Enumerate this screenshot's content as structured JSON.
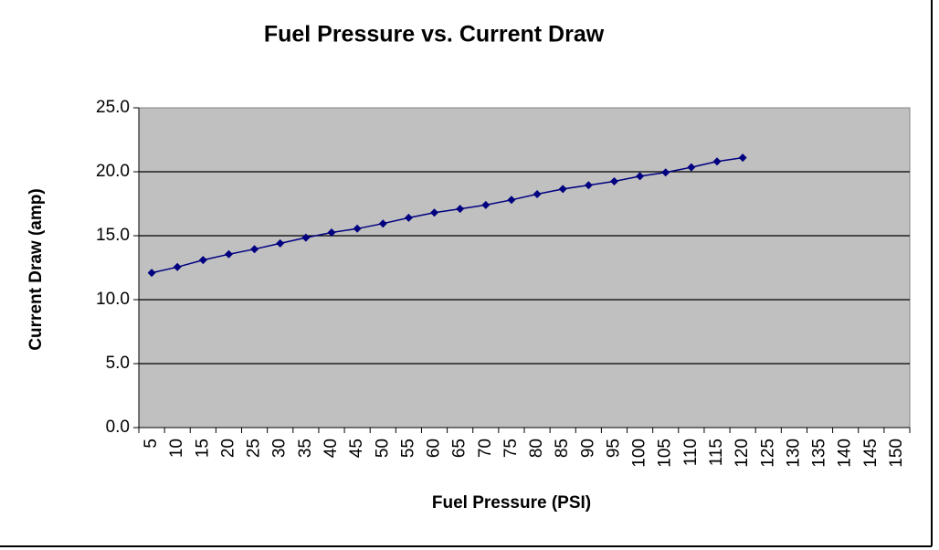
{
  "chart_data": {
    "type": "line",
    "title": "Fuel Pressure vs. Current Draw",
    "xlabel": "Fuel Pressure (PSI)",
    "ylabel": "Current Draw (amp)",
    "categories": [
      "5",
      "10",
      "15",
      "20",
      "25",
      "30",
      "35",
      "40",
      "45",
      "50",
      "55",
      "60",
      "65",
      "70",
      "75",
      "80",
      "85",
      "90",
      "95",
      "100",
      "105",
      "110",
      "115",
      "120",
      "125",
      "130",
      "135",
      "140",
      "145",
      "150"
    ],
    "values": [
      12.1,
      12.55,
      13.1,
      13.55,
      13.95,
      14.4,
      14.85,
      15.25,
      15.55,
      15.95,
      16.4,
      16.8,
      17.1,
      17.4,
      17.8,
      18.25,
      18.65,
      18.95,
      19.25,
      19.65,
      19.95,
      20.35,
      20.8,
      21.1,
      null,
      null,
      null,
      null,
      null,
      null
    ],
    "color": "#000080",
    "ylim": [
      0,
      25
    ],
    "yticks": [
      {
        "value": 0,
        "label": "0.0"
      },
      {
        "value": 5,
        "label": "5.0"
      },
      {
        "value": 10,
        "label": "10.0"
      },
      {
        "value": 15,
        "label": "15.0"
      },
      {
        "value": 20,
        "label": "20.0"
      },
      {
        "value": 25,
        "label": "25.0"
      }
    ],
    "grid": true
  }
}
